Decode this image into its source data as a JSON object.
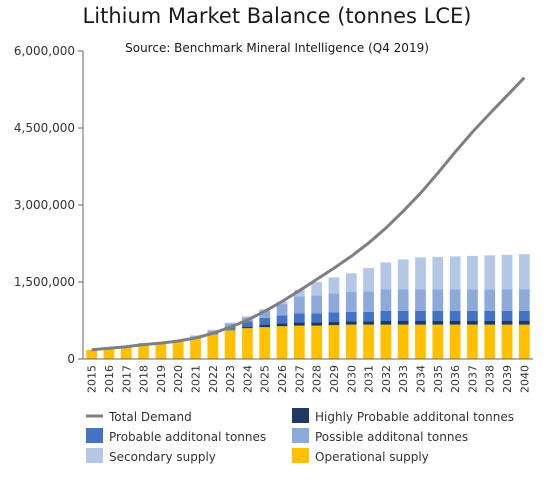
{
  "chart_data": {
    "type": "bar",
    "title": "Lithium Market Balance (tonnes LCE)",
    "subtitle": "Source: Benchmark Mineral Intelligence (Q4 2019)",
    "xlabel": "",
    "ylabel": "",
    "ylim": [
      0,
      6000000
    ],
    "yticks": [
      0,
      1500000,
      3000000,
      4500000,
      6000000
    ],
    "ytick_labels": [
      "0",
      "1,500,000",
      "3,000,000",
      "4,500,000",
      "6,000,000"
    ],
    "stacked": true,
    "grid": false,
    "legend_position": "bottom",
    "categories": [
      "2015",
      "2016",
      "2017",
      "2018",
      "2019",
      "2020",
      "2021",
      "2022",
      "2023",
      "2024",
      "2025",
      "2026",
      "2027",
      "2028",
      "2029",
      "2030",
      "2031",
      "2032",
      "2033",
      "2034",
      "2035",
      "2036",
      "2037",
      "2038",
      "2039",
      "2040"
    ],
    "series": [
      {
        "name": "Operational supply",
        "type": "bar",
        "color": "#ffc000",
        "values": [
          180000,
          200000,
          230000,
          280000,
          300000,
          340000,
          400000,
          480000,
          560000,
          600000,
          620000,
          640000,
          650000,
          650000,
          660000,
          670000,
          670000,
          670000,
          670000,
          670000,
          670000,
          670000,
          670000,
          670000,
          670000,
          670000
        ]
      },
      {
        "name": "Highly Probable additonal tonnes",
        "type": "bar",
        "color": "#1f3864",
        "values": [
          0,
          0,
          0,
          0,
          0,
          0,
          0,
          0,
          10000,
          30000,
          50000,
          50000,
          60000,
          60000,
          60000,
          60000,
          60000,
          70000,
          70000,
          70000,
          70000,
          70000,
          70000,
          70000,
          70000,
          70000
        ]
      },
      {
        "name": "Probable additonal tonnes",
        "type": "bar",
        "color": "#4472c4",
        "values": [
          0,
          0,
          0,
          20000,
          10000,
          20000,
          20000,
          30000,
          60000,
          100000,
          130000,
          160000,
          180000,
          180000,
          190000,
          190000,
          190000,
          200000,
          200000,
          200000,
          200000,
          200000,
          200000,
          200000,
          200000,
          200000
        ]
      },
      {
        "name": "Possible additonal tonnes",
        "type": "bar",
        "color": "#8eaadb",
        "values": [
          0,
          0,
          0,
          10000,
          0,
          10000,
          20000,
          40000,
          60000,
          80000,
          150000,
          220000,
          330000,
          350000,
          370000,
          390000,
          400000,
          420000,
          420000,
          420000,
          420000,
          420000,
          420000,
          420000,
          420000,
          420000
        ]
      },
      {
        "name": "Secondary supply",
        "type": "bar",
        "color": "#b4c7e7",
        "values": [
          0,
          0,
          0,
          0,
          0,
          0,
          20000,
          20000,
          20000,
          20000,
          20000,
          50000,
          130000,
          260000,
          310000,
          360000,
          450000,
          520000,
          580000,
          620000,
          630000,
          640000,
          650000,
          660000,
          670000,
          680000
        ]
      },
      {
        "name": "Total Demand",
        "type": "line",
        "color": "#7f7f7f",
        "values": [
          180000,
          210000,
          240000,
          280000,
          310000,
          350000,
          410000,
          500000,
          620000,
          760000,
          930000,
          1120000,
          1330000,
          1550000,
          1770000,
          2000000,
          2260000,
          2550000,
          2880000,
          3230000,
          3620000,
          4030000,
          4420000,
          4780000,
          5130000,
          5480000
        ]
      }
    ],
    "legend": [
      {
        "label": "Total Demand",
        "kind": "line",
        "color": "#7f7f7f"
      },
      {
        "label": "Probable additonal tonnes",
        "kind": "box",
        "color": "#4472c4"
      },
      {
        "label": "Secondary supply",
        "kind": "box",
        "color": "#b4c7e7"
      },
      {
        "label": "Highly Probable additonal tonnes",
        "kind": "box",
        "color": "#1f3864"
      },
      {
        "label": "Possible additonal tonnes",
        "kind": "box",
        "color": "#8eaadb"
      },
      {
        "label": "Operational supply",
        "kind": "box",
        "color": "#ffc000"
      }
    ]
  }
}
